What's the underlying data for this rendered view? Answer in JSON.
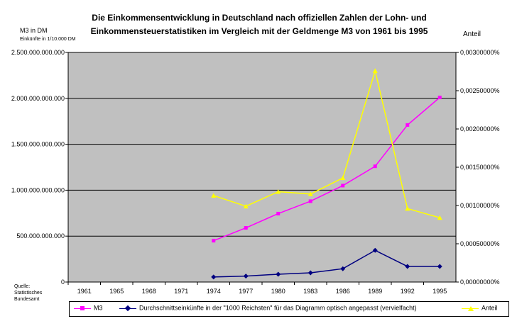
{
  "chart_data": {
    "type": "line",
    "title": "Die Einkommensentwicklung in Deutschland nach offiziellen Zahlen der Lohn- und Einkommensteuerstatistiken im Vergleich mit der Geldmenge M3 von 1961 bis 1995",
    "title_line1": "Die Einkommensentwicklung in Deutschland nach offiziellen Zahlen der Lohn- und",
    "title_line2": "Einkommensteuerstatistiken im Vergleich mit der Geldmenge M3 von 1961 bis 1995",
    "ylabel_left": "M3 in DM",
    "ylabel_left_sub": "Einkünfte in 1/10.000 DM",
    "ylabel_right": "Anteil",
    "source_note": [
      "Quelle:",
      "Statistisches",
      "Bundesamt"
    ],
    "categories": [
      "1961",
      "1965",
      "1968",
      "1971",
      "1974",
      "1977",
      "1980",
      "1983",
      "1986",
      "1989",
      "1992",
      "1995"
    ],
    "y_left_ticks": [
      "0",
      "500.000.000.000",
      "1.000.000.000.000",
      "1.500.000.000.000",
      "2.000.000.000.000",
      "2.500.000.000.000"
    ],
    "y_right_ticks": [
      "0,00000000%",
      "0,00050000%",
      "0,00100000%",
      "0,00150000%",
      "0,00200000%",
      "0,00250000%",
      "0,00300000%"
    ],
    "ylim_left": [
      0,
      2500000000000
    ],
    "ylim_right": [
      0,
      3e-05
    ],
    "grid": true,
    "legend_position": "bottom",
    "plot_background": "#c0c0c0",
    "series": [
      {
        "name": "M3",
        "axis": "left",
        "color": "#ff00ff",
        "marker": "square",
        "values": [
          null,
          null,
          null,
          null,
          450000000000,
          590000000000,
          745000000000,
          880000000000,
          1050000000000,
          1260000000000,
          1710000000000,
          2010000000000
        ]
      },
      {
        "name": "Durchschnittseinkünfte in der \"1000 Reichsten\" für das Diagramm  optisch angepasst (vervielfacht)",
        "axis": "left",
        "color": "#000080",
        "marker": "diamond",
        "values": [
          null,
          null,
          null,
          null,
          55000000000,
          65000000000,
          85000000000,
          100000000000,
          145000000000,
          345000000000,
          170000000000,
          170000000000
        ]
      },
      {
        "name": "Anteil",
        "axis": "right",
        "color": "#ffff00",
        "marker": "triangle",
        "values": [
          null,
          null,
          null,
          null,
          1.13e-05,
          9.9e-06,
          1.18e-05,
          1.15e-05,
          1.36e-05,
          2.76e-05,
          9.6e-06,
          8.4e-06
        ]
      }
    ]
  }
}
